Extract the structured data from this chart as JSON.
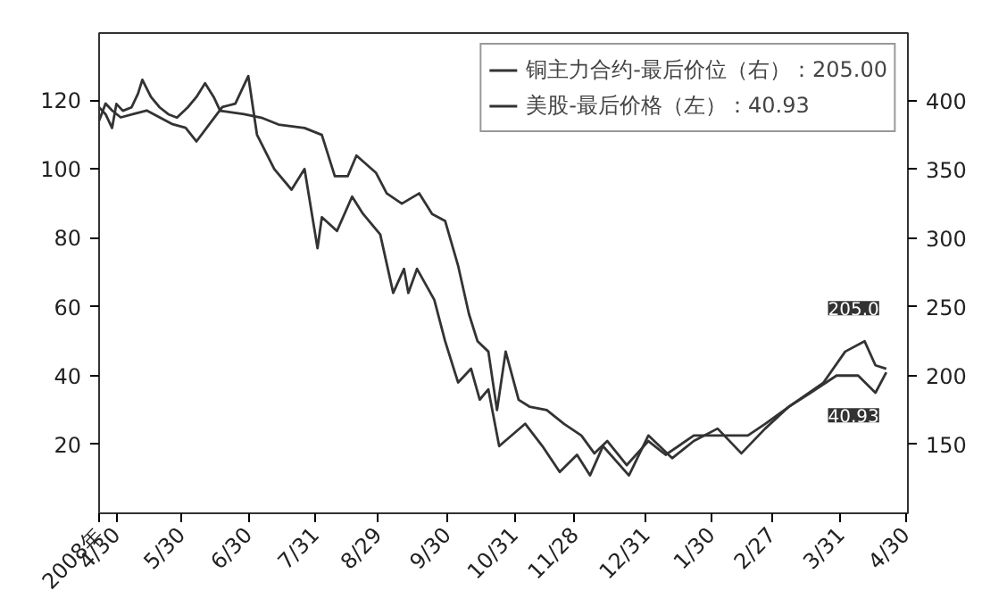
{
  "chart_data": {
    "type": "line",
    "xlim": [
      "2008-04-22",
      "2009-05-01"
    ],
    "xticks": [
      {
        "value": "2008-04-30",
        "label": "4/30"
      },
      {
        "value": "2008-05-30",
        "label": "5/30"
      },
      {
        "value": "2008-06-30",
        "label": "6/30"
      },
      {
        "value": "2008-07-31",
        "label": "7/31"
      },
      {
        "value": "2008-08-29",
        "label": "8/29"
      },
      {
        "value": "2008-09-30",
        "label": "9/30"
      },
      {
        "value": "2008-10-31",
        "label": "10/31"
      },
      {
        "value": "2008-11-28",
        "label": "11/28"
      },
      {
        "value": "2008-12-31",
        "label": "12/31"
      },
      {
        "value": "2009-01-30",
        "label": "1/30"
      },
      {
        "value": "2009-02-27",
        "label": "2/27"
      },
      {
        "value": "2009-03-31",
        "label": "3/31"
      },
      {
        "value": "2009-04-30",
        "label": "4/30"
      }
    ],
    "ylim": [
      0,
      139.5
    ],
    "yticks": [
      20,
      40,
      60,
      80,
      100,
      120
    ],
    "y2lim": [
      100,
      449
    ],
    "y2ticks": [
      150,
      200,
      250,
      300,
      350,
      400
    ],
    "legend": "top right",
    "grid": false,
    "annotations": [
      "2008年",
      {
        "text": "40.93",
        "x": "2009-04-21",
        "y": 40.93
      },
      "205.0"
    ],
    "series": [
      {
        "name": "铜主力合约-最后价位（右）：205.00",
        "color": "#333333",
        "axis": "y2",
        "x": [
          "2008-04-22",
          "2008-04-25",
          "2008-04-28",
          "2008-04-30",
          "2008-05-03",
          "2008-05-07",
          "2008-05-10",
          "2008-05-12",
          "2008-05-16",
          "2008-05-20",
          "2008-05-24",
          "2008-05-28",
          "2008-06-02",
          "2008-06-06",
          "2008-06-10",
          "2008-06-14",
          "2008-06-17",
          "2008-06-28",
          "2008-07-06",
          "2008-07-14",
          "2008-07-26",
          "2008-08-03",
          "2008-08-09",
          "2008-08-15",
          "2008-08-19",
          "2008-08-28",
          "2008-09-02",
          "2008-09-09",
          "2008-09-17",
          "2008-09-23",
          "2008-09-29",
          "2008-10-05",
          "2008-10-10",
          "2008-10-14",
          "2008-10-19",
          "2008-10-23",
          "2008-10-27",
          "2008-11-02",
          "2008-11-07",
          "2008-11-15",
          "2008-11-23",
          "2008-12-01",
          "2008-12-07",
          "2008-12-13",
          "2008-12-22",
          "2009-01-01",
          "2009-01-09",
          "2009-01-22",
          "2009-02-04",
          "2009-02-16",
          "2009-02-24",
          "2009-03-07",
          "2009-03-23",
          "2009-04-02",
          "2009-04-11",
          "2009-04-16",
          "2009-04-21"
        ],
        "values": [
          395,
          390,
          380,
          397.5,
          392.5,
          395,
          405,
          415,
          402.5,
          395,
          390,
          387.5,
          395,
          402.5,
          412.5,
          402.5,
          392.5,
          390,
          387.5,
          382.5,
          380,
          375,
          345,
          345,
          360,
          347.5,
          332.5,
          325,
          332.5,
          317.5,
          312.5,
          280,
          245,
          225,
          217.5,
          175,
          217.5,
          182.5,
          177.5,
          175,
          165,
          156.5,
          143.5,
          152.5,
          135,
          152.5,
          142.5,
          156.5,
          156.5,
          156.5,
          165,
          177.5,
          195,
          217.5,
          225,
          207.5,
          205
        ]
      },
      {
        "name": "美股-最后价格（左）：40.93",
        "color": "#333333",
        "x": [
          "2008-04-22",
          "2008-04-25",
          "2008-04-28",
          "2008-05-02",
          "2008-05-08",
          "2008-05-14",
          "2008-05-20",
          "2008-05-26",
          "2008-06-01",
          "2008-06-06",
          "2008-06-12",
          "2008-06-18",
          "2008-06-24",
          "2008-06-30",
          "2008-07-04",
          "2008-07-12",
          "2008-07-20",
          "2008-07-26",
          "2008-08-01",
          "2008-08-03",
          "2008-08-10",
          "2008-08-17",
          "2008-08-22",
          "2008-08-30",
          "2008-09-05",
          "2008-09-10",
          "2008-09-12",
          "2008-09-16",
          "2008-09-24",
          "2008-09-29",
          "2008-10-05",
          "2008-10-11",
          "2008-10-15",
          "2008-10-19",
          "2008-10-24",
          "2008-11-05",
          "2008-11-13",
          "2008-11-21",
          "2008-11-29",
          "2008-12-05",
          "2008-12-11",
          "2008-12-23",
          "2009-01-01",
          "2009-01-12",
          "2009-01-22",
          "2009-02-02",
          "2009-02-13",
          "2009-02-24",
          "2009-03-07",
          "2009-03-17",
          "2009-03-29",
          "2009-04-08",
          "2009-04-16",
          "2009-04-21"
        ],
        "values": [
          114,
          119,
          117,
          115,
          116,
          117,
          115,
          113,
          112,
          108,
          113,
          118,
          119,
          127,
          110,
          100,
          94,
          100,
          77,
          86,
          82,
          92,
          87,
          81,
          64,
          71,
          64,
          71,
          62,
          50,
          38,
          42,
          33,
          36,
          19.5,
          26,
          19.5,
          12,
          17,
          11,
          19.5,
          11,
          22.6,
          16,
          21,
          24.6,
          17.4,
          24.6,
          31,
          35,
          40,
          40,
          35,
          40.93
        ]
      }
    ]
  }
}
